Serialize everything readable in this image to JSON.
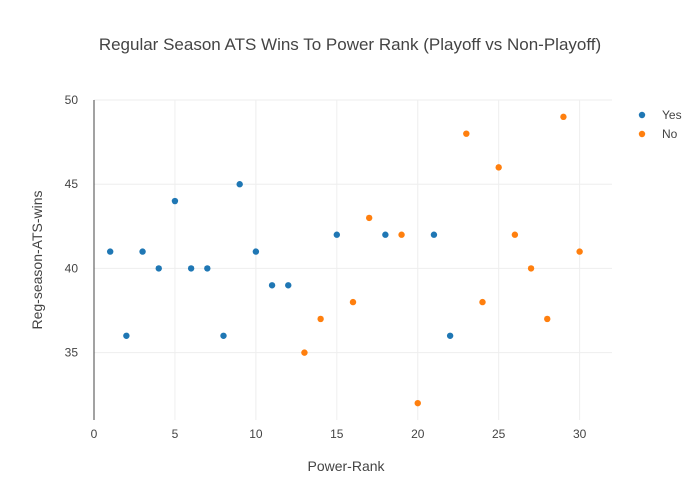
{
  "chart_data": {
    "type": "scatter",
    "title": "Regular Season ATS Wins To Power Rank (Playoff vs Non-Playoff)",
    "xlabel": "Power-Rank",
    "ylabel": "Reg-season-ATS-wins",
    "xlim": [
      0,
      32
    ],
    "ylim": [
      31,
      50
    ],
    "xticks": [
      0,
      5,
      10,
      15,
      20,
      25,
      30
    ],
    "yticks": [
      35,
      40,
      45,
      50
    ],
    "grid": true,
    "legend_position": "top-right",
    "series": [
      {
        "name": "Yes",
        "color": "#1f77b4",
        "points": [
          {
            "x": 1,
            "y": 41
          },
          {
            "x": 2,
            "y": 36
          },
          {
            "x": 3,
            "y": 41
          },
          {
            "x": 4,
            "y": 40
          },
          {
            "x": 5,
            "y": 44
          },
          {
            "x": 6,
            "y": 40
          },
          {
            "x": 7,
            "y": 40
          },
          {
            "x": 8,
            "y": 36
          },
          {
            "x": 9,
            "y": 45
          },
          {
            "x": 10,
            "y": 41
          },
          {
            "x": 11,
            "y": 39
          },
          {
            "x": 12,
            "y": 39
          },
          {
            "x": 15,
            "y": 42
          },
          {
            "x": 18,
            "y": 42
          },
          {
            "x": 21,
            "y": 42
          },
          {
            "x": 22,
            "y": 36
          }
        ]
      },
      {
        "name": "No",
        "color": "#ff7f0e",
        "points": [
          {
            "x": 13,
            "y": 35
          },
          {
            "x": 14,
            "y": 37
          },
          {
            "x": 16,
            "y": 38
          },
          {
            "x": 17,
            "y": 43
          },
          {
            "x": 19,
            "y": 42
          },
          {
            "x": 20,
            "y": 32
          },
          {
            "x": 23,
            "y": 48
          },
          {
            "x": 24,
            "y": 38
          },
          {
            "x": 25,
            "y": 46
          },
          {
            "x": 26,
            "y": 42
          },
          {
            "x": 27,
            "y": 40
          },
          {
            "x": 28,
            "y": 37
          },
          {
            "x": 29,
            "y": 49
          },
          {
            "x": 30,
            "y": 41
          }
        ]
      }
    ]
  }
}
